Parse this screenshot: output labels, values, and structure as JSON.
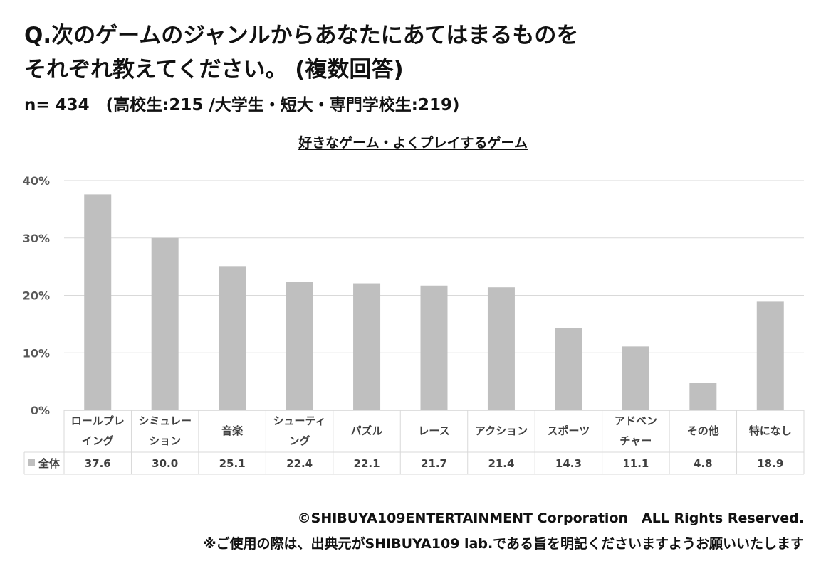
{
  "header": {
    "question_line1": "Q.次のゲームのジャンルからあなたにあてはまるものを",
    "question_line2": "それぞれ教えてください。 (複数回答)",
    "sample_line": "n= 434　(高校生:215 /大学生・短大・専門学校生:219)"
  },
  "chart_data": {
    "type": "bar",
    "title": "好きなゲーム・よくプレイするゲーム",
    "categories": [
      [
        "ロールプレ",
        "イング"
      ],
      [
        "シミュレー",
        "ション"
      ],
      [
        "音楽"
      ],
      [
        "シューティ",
        "ング"
      ],
      [
        "パズル"
      ],
      [
        "レース"
      ],
      [
        "アクション"
      ],
      [
        "スポーツ"
      ],
      [
        "アドベン",
        "チャー"
      ],
      [
        "その他"
      ],
      [
        "特になし"
      ]
    ],
    "series": [
      {
        "name": "全体",
        "values": [
          37.6,
          30.0,
          25.1,
          22.4,
          22.1,
          21.7,
          21.4,
          14.3,
          11.1,
          4.8,
          18.9
        ],
        "display": [
          "37.6",
          "30.0",
          "25.1",
          "22.4",
          "22.1",
          "21.7",
          "21.4",
          "14.3",
          "11.1",
          "4.8",
          "18.9"
        ]
      }
    ],
    "y_ticks": [
      "0%",
      "10%",
      "20%",
      "30%",
      "40%"
    ],
    "ylim": [
      0,
      40
    ],
    "grid": true,
    "legend": "data-table",
    "bar_color": "#bfbfbf"
  },
  "footer": {
    "copyright": "©SHIBUYA109ENTERTAINMENT Corporation　ALL Rights Reserved.",
    "note": "※ご使用の際は、出典元がSHIBUYA109 lab.である旨を明記くださいますようお願いいたします"
  }
}
